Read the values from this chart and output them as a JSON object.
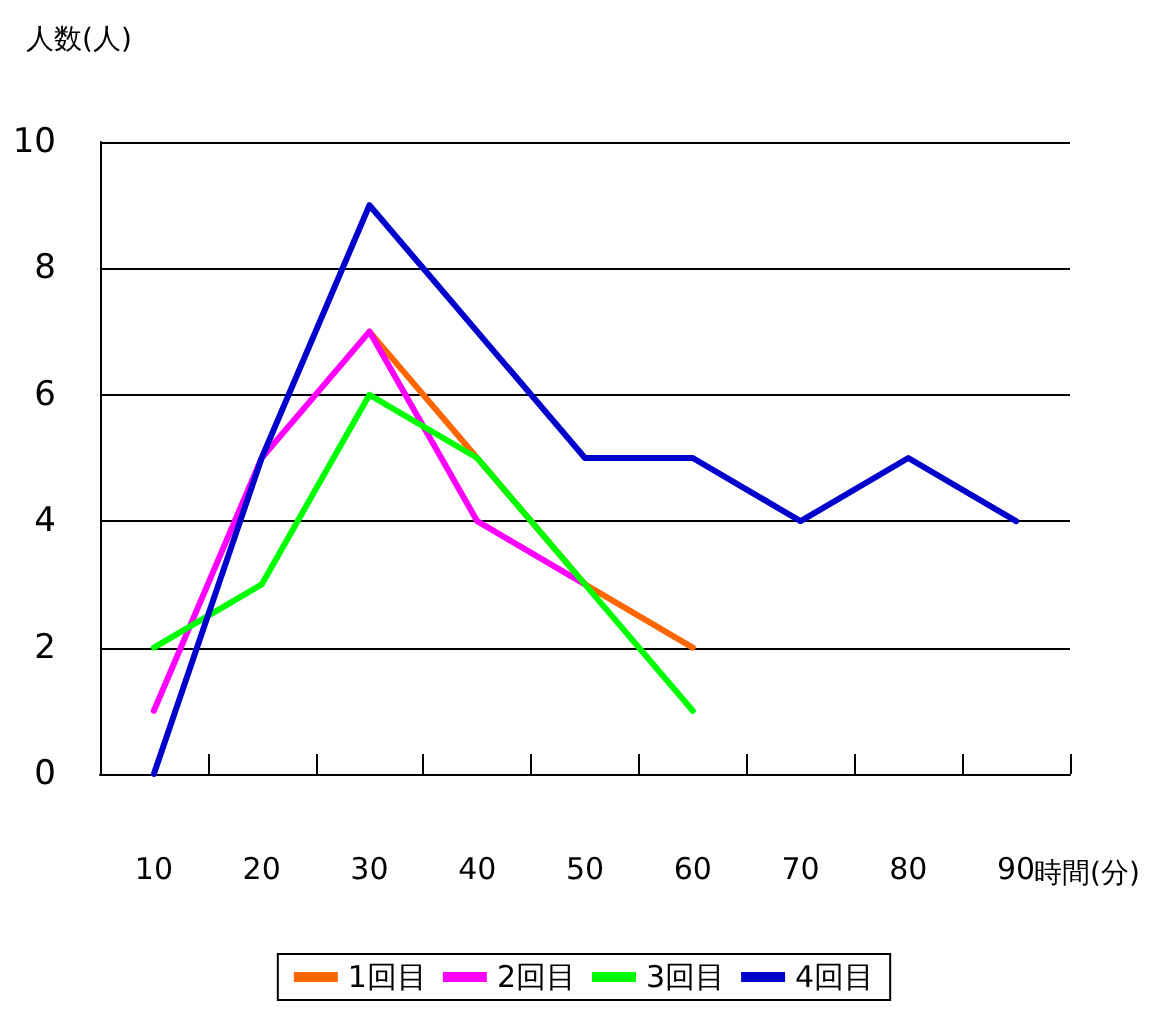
{
  "chart_data": {
    "type": "line",
    "xlabel": "時間(分)",
    "ylabel": "人数(人)",
    "categories": [
      "10",
      "20",
      "30",
      "40",
      "50",
      "60",
      "70",
      "80",
      "90"
    ],
    "series": [
      {
        "name": "1回目",
        "color": "#ff6600",
        "values": [
          null,
          null,
          7,
          5,
          3,
          2,
          null,
          null,
          null
        ]
      },
      {
        "name": "2回目",
        "color": "#ff00ff",
        "values": [
          1,
          5,
          7,
          4,
          3,
          null,
          null,
          null,
          null
        ]
      },
      {
        "name": "3回目",
        "color": "#00ff00",
        "values": [
          2,
          3,
          6,
          5,
          3,
          1,
          null,
          null,
          null
        ]
      },
      {
        "name": "4回目",
        "color": "#0000cc",
        "values": [
          0,
          5,
          9,
          7,
          5,
          5,
          4,
          5,
          4
        ]
      }
    ],
    "ylim": [
      0,
      10
    ],
    "yticks": [
      0,
      2,
      4,
      6,
      8,
      10
    ],
    "grid": "y",
    "legend": "bottom",
    "marker": "none",
    "line_style": "solid"
  }
}
